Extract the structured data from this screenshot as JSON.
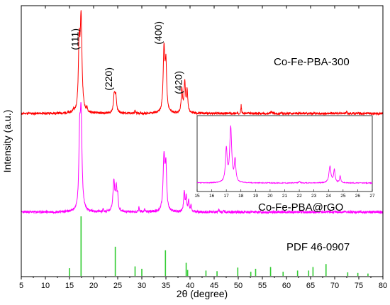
{
  "chart_data": {
    "type": "line",
    "xlabel": "2θ (degree)",
    "ylabel": "Intensity (a.u.)",
    "xlim": [
      5,
      80
    ],
    "x_ticks": [
      5,
      10,
      15,
      20,
      25,
      30,
      35,
      40,
      45,
      50,
      55,
      60,
      65,
      70,
      75,
      80
    ],
    "y_ticks_shown": false,
    "series": [
      {
        "name": "Co-Fe-PBA-300",
        "color": "#ff0000",
        "peaks": [
          {
            "x": 17.4,
            "y": 100,
            "w": 0.22
          },
          {
            "x": 17.0,
            "y": 68,
            "w": 0.18
          },
          {
            "x": 24.3,
            "y": 20,
            "w": 0.2
          },
          {
            "x": 24.6,
            "y": 16,
            "w": 0.18
          },
          {
            "x": 34.6,
            "y": 68,
            "w": 0.2
          },
          {
            "x": 35.0,
            "y": 50,
            "w": 0.18
          },
          {
            "x": 38.3,
            "y": 26,
            "w": 0.15
          },
          {
            "x": 38.9,
            "y": 33,
            "w": 0.18
          },
          {
            "x": 39.4,
            "y": 24,
            "w": 0.15
          },
          {
            "x": 18.6,
            "y": 4,
            "w": 0.1
          },
          {
            "x": 15.8,
            "y": 3,
            "w": 0.1
          },
          {
            "x": 28.6,
            "y": 3,
            "w": 0.1
          },
          {
            "x": 50.6,
            "y": 9,
            "w": 0.08
          },
          {
            "x": 56.8,
            "y": 3,
            "w": 0.1
          },
          {
            "x": 72.5,
            "y": 2,
            "w": 0.1
          }
        ],
        "annotations": [
          {
            "text": "(111)",
            "x": 17.4
          },
          {
            "text": "(220)",
            "x": 24.4
          },
          {
            "text": "(400)",
            "x": 34.7
          },
          {
            "text": "(420)",
            "x": 38.9
          }
        ]
      },
      {
        "name": "Co-Fe-PBA@rGO",
        "color": "#ff00ff",
        "peaks": [
          {
            "x": 17.4,
            "y": 100,
            "w": 0.22
          },
          {
            "x": 17.1,
            "y": 68,
            "w": 0.18
          },
          {
            "x": 24.2,
            "y": 32,
            "w": 0.22
          },
          {
            "x": 24.7,
            "y": 24,
            "w": 0.18
          },
          {
            "x": 25.0,
            "y": 14,
            "w": 0.12
          },
          {
            "x": 34.6,
            "y": 58,
            "w": 0.22
          },
          {
            "x": 35.0,
            "y": 44,
            "w": 0.18
          },
          {
            "x": 38.8,
            "y": 22,
            "w": 0.15
          },
          {
            "x": 39.2,
            "y": 16,
            "w": 0.12
          },
          {
            "x": 39.7,
            "y": 12,
            "w": 0.12
          },
          {
            "x": 40.2,
            "y": 8,
            "w": 0.1
          },
          {
            "x": 22.0,
            "y": 3,
            "w": 0.1
          },
          {
            "x": 29.4,
            "y": 5,
            "w": 0.1
          },
          {
            "x": 30.6,
            "y": 3,
            "w": 0.1
          },
          {
            "x": 46.0,
            "y": 3,
            "w": 0.1
          },
          {
            "x": 47.0,
            "y": 2,
            "w": 0.1
          }
        ]
      }
    ],
    "reference": {
      "name": "PDF 46-0907",
      "color": "#33cc33",
      "lines": [
        {
          "x": 15.0,
          "y": 13
        },
        {
          "x": 17.4,
          "y": 100
        },
        {
          "x": 24.5,
          "y": 49
        },
        {
          "x": 28.6,
          "y": 16
        },
        {
          "x": 30.0,
          "y": 12
        },
        {
          "x": 34.9,
          "y": 43
        },
        {
          "x": 39.2,
          "y": 22
        },
        {
          "x": 39.5,
          "y": 10
        },
        {
          "x": 43.3,
          "y": 9
        },
        {
          "x": 45.6,
          "y": 8
        },
        {
          "x": 49.9,
          "y": 14
        },
        {
          "x": 52.6,
          "y": 7
        },
        {
          "x": 53.6,
          "y": 12
        },
        {
          "x": 56.7,
          "y": 15
        },
        {
          "x": 59.3,
          "y": 7
        },
        {
          "x": 62.3,
          "y": 9
        },
        {
          "x": 64.6,
          "y": 9
        },
        {
          "x": 65.5,
          "y": 15
        },
        {
          "x": 68.2,
          "y": 20
        },
        {
          "x": 72.7,
          "y": 6
        },
        {
          "x": 74.8,
          "y": 5
        },
        {
          "x": 76.9,
          "y": 4
        }
      ]
    },
    "inset": {
      "series": "Co-Fe-PBA@rGO",
      "color": "#ff00ff",
      "xlim": [
        15,
        27
      ],
      "x_ticks": [
        15,
        16,
        17,
        18,
        19,
        20,
        21,
        22,
        23,
        24,
        25,
        26,
        27
      ],
      "peaks": [
        {
          "x": 17.3,
          "y": 100,
          "w": 0.08
        },
        {
          "x": 17.0,
          "y": 60,
          "w": 0.07
        },
        {
          "x": 17.6,
          "y": 40,
          "w": 0.06
        },
        {
          "x": 24.1,
          "y": 30,
          "w": 0.08
        },
        {
          "x": 24.4,
          "y": 24,
          "w": 0.06
        },
        {
          "x": 24.8,
          "y": 12,
          "w": 0.05
        },
        {
          "x": 22.0,
          "y": 3,
          "w": 0.05
        }
      ]
    }
  }
}
